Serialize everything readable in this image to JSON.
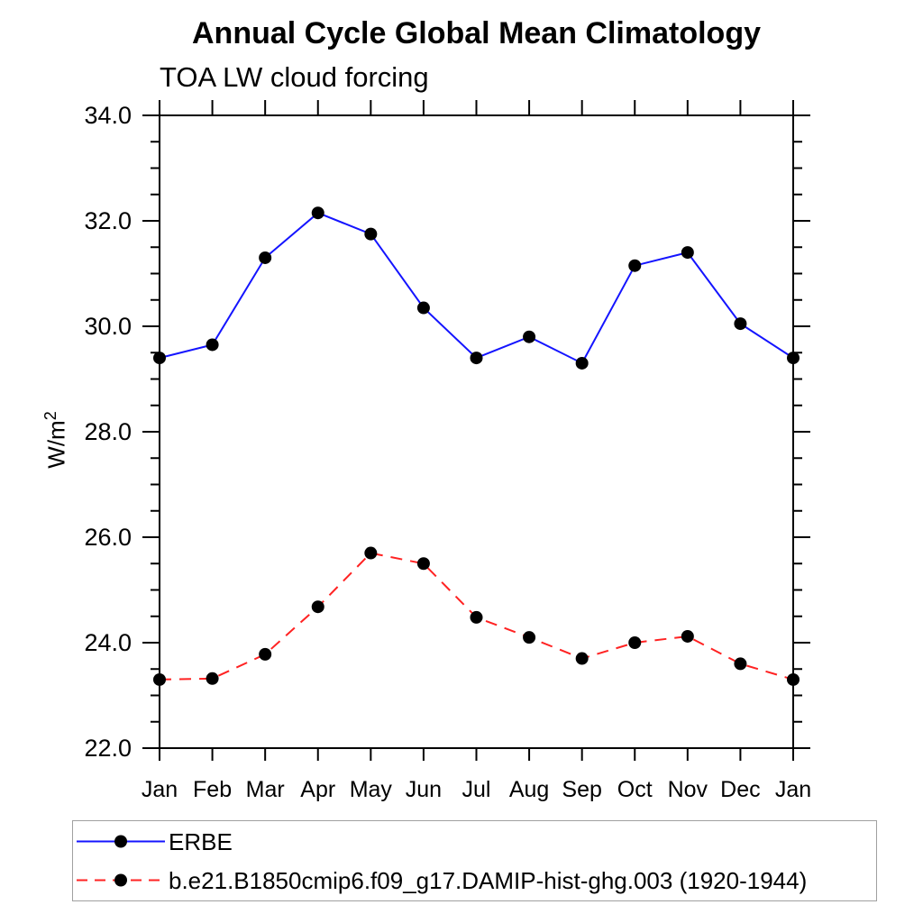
{
  "page": {
    "background_color": "#ffffff",
    "text_color": "#000000"
  },
  "chart_data": {
    "type": "line",
    "title": "Annual Cycle Global Mean Climatology",
    "subtitle": "TOA LW cloud forcing",
    "ylabel": {
      "text": "W/m²",
      "base": "W/m",
      "sup": "2"
    },
    "xlabel": "",
    "x_categories": [
      "Jan",
      "Feb",
      "Mar",
      "Apr",
      "May",
      "Jun",
      "Jul",
      "Aug",
      "Sep",
      "Oct",
      "Nov",
      "Dec",
      "Jan"
    ],
    "ylim": [
      22.0,
      34.0
    ],
    "y_major_step": 2.0,
    "y_minor_step": 0.5,
    "y_major_labels": [
      "22.0",
      "24.0",
      "26.0",
      "28.0",
      "30.0",
      "32.0",
      "34.0"
    ],
    "grid": false,
    "frame_color": "#000000",
    "marker": "filled-circle",
    "marker_color": "#000000",
    "legend_position": "bottom-left-box",
    "series": [
      {
        "name": "ERBE",
        "color": "#1414ff",
        "line_style": "solid",
        "values": [
          29.4,
          29.65,
          31.3,
          32.15,
          31.75,
          30.35,
          29.4,
          29.8,
          29.3,
          31.15,
          31.4,
          30.05,
          29.4
        ]
      },
      {
        "name": "b.e21.B1850cmip6.f09_g17.DAMIP-hist-ghg.003 (1920-1944)",
        "color": "#ff2222",
        "line_style": "dashed",
        "values": [
          23.3,
          23.32,
          23.78,
          24.68,
          25.7,
          25.5,
          24.48,
          24.1,
          23.7,
          24.0,
          24.12,
          23.6,
          23.3
        ]
      }
    ]
  }
}
